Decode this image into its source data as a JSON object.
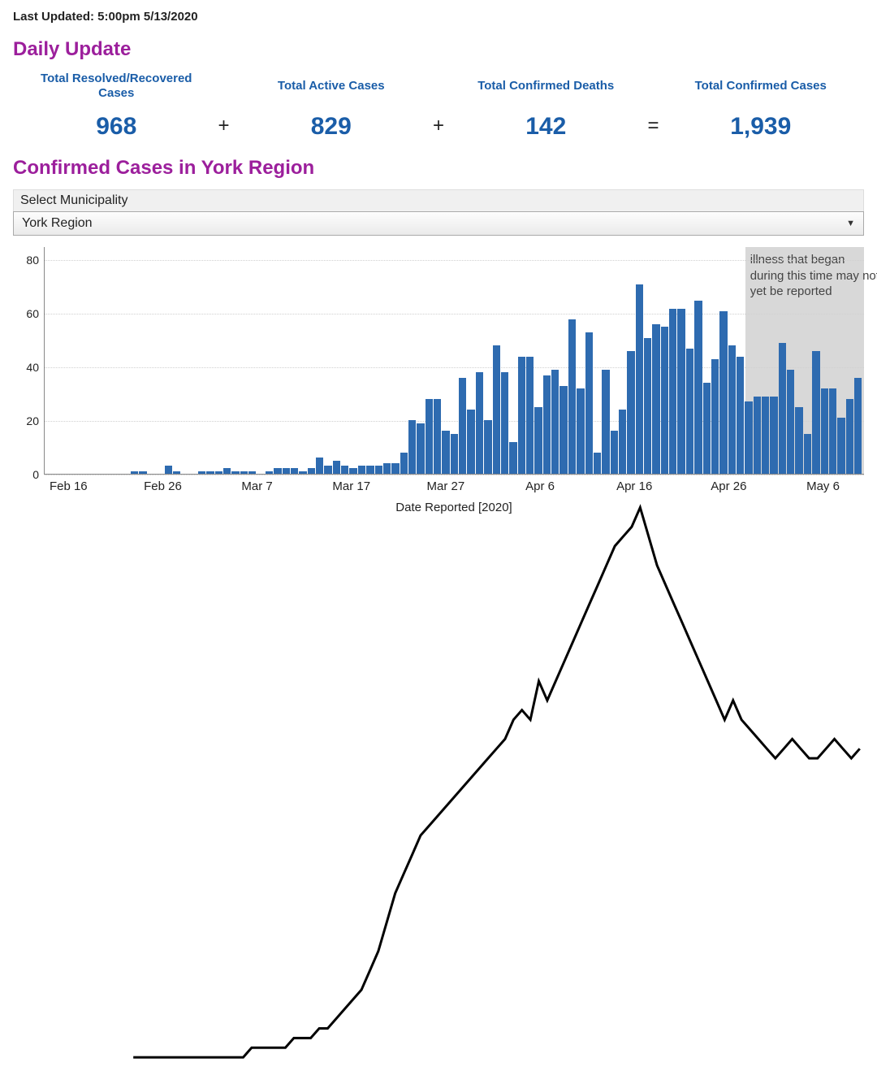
{
  "last_updated": "Last Updated:  5:00pm 5/13/2020",
  "daily_update": {
    "title": "Daily Update",
    "title_color": "#9c1f9c",
    "stat_color": "#1a5da8",
    "stats": [
      {
        "label": "Total Resolved/Recovered Cases",
        "value": "968"
      },
      {
        "label": "Total Active Cases",
        "value": "829"
      },
      {
        "label": "Total Confirmed Deaths",
        "value": "142"
      },
      {
        "label": "Total Confirmed Cases",
        "value": "1,939"
      }
    ],
    "ops": [
      "+",
      "+",
      "="
    ]
  },
  "confirmed": {
    "title": "Confirmed Cases in York Region",
    "title_color": "#9c1f9c",
    "select_label": "Select Municipality",
    "select_value": "York Region"
  },
  "chart": {
    "type": "bar+line",
    "bar_color": "#2e6bb0",
    "line_color": "#000000",
    "background": "#ffffff",
    "grid_color": "#d0d0d0",
    "ylim": [
      0,
      85
    ],
    "yticks": [
      0,
      20,
      40,
      60,
      80
    ],
    "xticks": [
      {
        "pos": 0.03,
        "label": "Feb 16"
      },
      {
        "pos": 0.145,
        "label": "Feb 26"
      },
      {
        "pos": 0.26,
        "label": "Mar 7"
      },
      {
        "pos": 0.375,
        "label": "Mar 17"
      },
      {
        "pos": 0.49,
        "label": "Mar 27"
      },
      {
        "pos": 0.605,
        "label": "Apr 6"
      },
      {
        "pos": 0.72,
        "label": "Apr 16"
      },
      {
        "pos": 0.835,
        "label": "Apr 26"
      },
      {
        "pos": 0.95,
        "label": "May 6"
      }
    ],
    "xlabel": "Date Reported [2020]",
    "shade": {
      "start": 0.855,
      "end": 1.0,
      "text": "illness that began during this time may not yet be reported"
    },
    "bars": [
      0,
      0,
      0,
      0,
      0,
      0,
      0,
      0,
      0,
      0,
      1,
      1,
      0,
      0,
      3,
      1,
      0,
      0,
      1,
      1,
      1,
      2,
      1,
      1,
      1,
      0,
      1,
      2,
      2,
      2,
      1,
      2,
      6,
      3,
      5,
      3,
      2,
      3,
      3,
      3,
      4,
      4,
      8,
      20,
      19,
      28,
      28,
      16,
      15,
      36,
      24,
      38,
      20,
      48,
      38,
      12,
      44,
      44,
      25,
      37,
      39,
      33,
      58,
      32,
      53,
      8,
      39,
      16,
      24,
      46,
      71,
      51,
      56,
      55,
      62,
      62,
      47,
      65,
      34,
      43,
      61,
      48,
      44,
      27,
      29,
      29,
      29,
      49,
      39,
      25,
      15,
      46,
      32,
      32,
      21,
      28,
      36
    ],
    "line": [
      1,
      1,
      1,
      1,
      1,
      1,
      1,
      1,
      1,
      1,
      1,
      1,
      1,
      1,
      1,
      1,
      1,
      1,
      1,
      1,
      1,
      1,
      1,
      1,
      2,
      2,
      2,
      2,
      2,
      3,
      3,
      3,
      4,
      4,
      5,
      6,
      7,
      8,
      10,
      12,
      15,
      18,
      20,
      22,
      24,
      25,
      26,
      27,
      28,
      29,
      30,
      31,
      32,
      33,
      34,
      36,
      37,
      36,
      40,
      38,
      40,
      42,
      44,
      46,
      48,
      50,
      52,
      54,
      55,
      56,
      58,
      55,
      52,
      50,
      48,
      46,
      44,
      42,
      40,
      38,
      36,
      38,
      36,
      35,
      34,
      33,
      32,
      33,
      34,
      33,
      32,
      32,
      33,
      34,
      33,
      32,
      33
    ]
  }
}
